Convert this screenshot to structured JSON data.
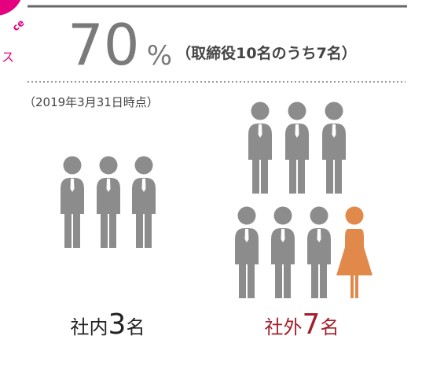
{
  "header": {
    "percent_value": "70",
    "percent_sign": "%",
    "note": "（取締役10名のうち7名）"
  },
  "date_note": "（2019年3月31日時点）",
  "corner": {
    "badge_text": "ce",
    "label": "ス"
  },
  "groups": [
    {
      "label": "社内",
      "count": "3",
      "unit": "名"
    },
    {
      "label": "社外",
      "count": "7",
      "unit": "名"
    }
  ]
}
